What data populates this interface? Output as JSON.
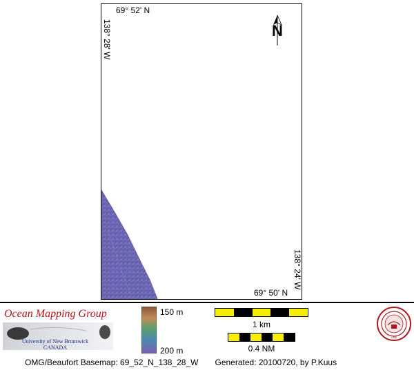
{
  "map": {
    "lat_top": "69° 52' N",
    "lat_bottom": "69° 50' N",
    "lon_left": "138° 28' W",
    "lon_right": "138° 24' W",
    "north_label": "N"
  },
  "legend": {
    "org_name": "Ocean Mapping Group",
    "university_line1": "University of New Brunswick",
    "university_line2": "CANADA",
    "colorbar_top": "150 m",
    "colorbar_bottom": "200 m",
    "scale_km": "1 km",
    "scale_nm": "0.4 NM",
    "scale_km_segments": 5,
    "scale_nm_segments": 6
  },
  "caption": {
    "basemap": "OMG/Beaufort Basemap: 69_52_N_138_28_W",
    "generated": "Generated: 20100720, by P.Kuus"
  },
  "colors": {
    "bathymetry": "#6a6ab4",
    "scale_yellow": "#f7ee05",
    "org_red": "#b3131b"
  }
}
